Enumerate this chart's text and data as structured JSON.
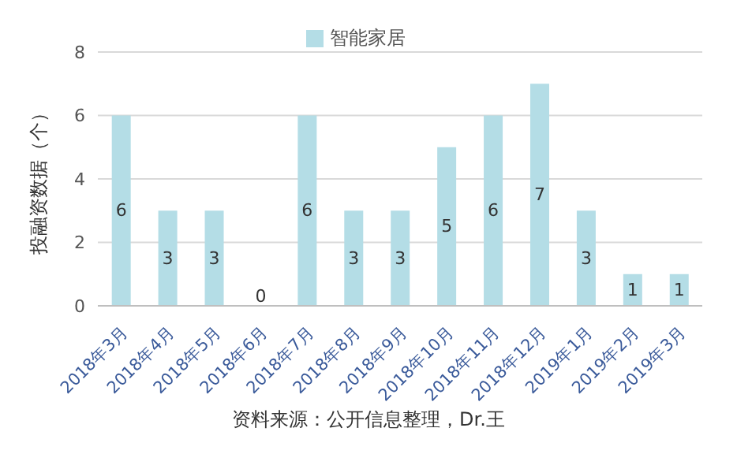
{
  "chart_data": {
    "type": "bar",
    "ylabel": "投融资数据（个）",
    "categories": [
      "2018年3月",
      "2018年4月",
      "2018年5月",
      "2018年6月",
      "2018年7月",
      "2018年8月",
      "2018年9月",
      "2018年10月",
      "2018年11月",
      "2018年12月",
      "2019年1月",
      "2019年2月",
      "2019年3月"
    ],
    "series": [
      {
        "name": "智能家居",
        "color": "#b4dde6",
        "values": [
          6,
          3,
          3,
          0,
          6,
          3,
          3,
          5,
          6,
          7,
          3,
          1,
          1
        ]
      }
    ],
    "ylim": [
      0,
      8
    ],
    "yticks": [
      0,
      2,
      4,
      6,
      8
    ],
    "grid": "y",
    "legend": "top",
    "data_labels": true,
    "annotations": [
      "资料来源：公开信息整理，Dr.王"
    ]
  }
}
